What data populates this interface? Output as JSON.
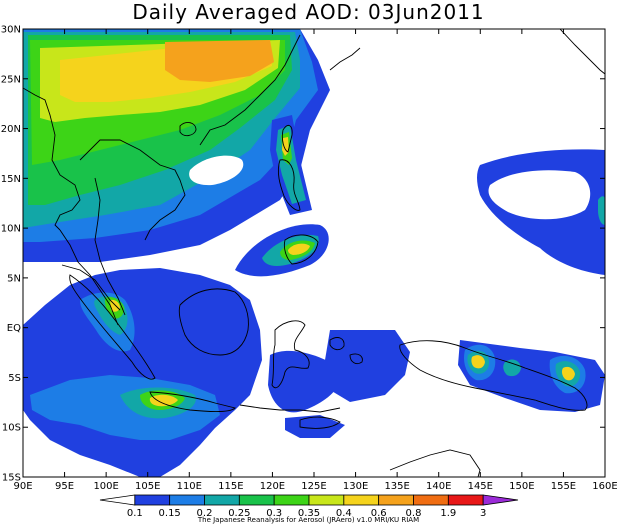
{
  "title": "Daily Averaged AOD: 03Jun2011",
  "credit": "The Japanese Reanalysis for Aerosol (JRAero) v1.0 MRI/KU RIAM",
  "map": {
    "lon_range": [
      90,
      160
    ],
    "lat_range": [
      -15,
      30
    ],
    "lon_ticks": [
      "90E",
      "95E",
      "100E",
      "105E",
      "110E",
      "115E",
      "120E",
      "125E",
      "130E",
      "135E",
      "140E",
      "145E",
      "150E",
      "155E",
      "160E"
    ],
    "lat_ticks": [
      "30N",
      "25N",
      "20N",
      "15N",
      "10N",
      "5N",
      "EQ",
      "5S",
      "10S",
      "15S"
    ]
  },
  "colorbar": {
    "labels": [
      "0.1",
      "0.15",
      "0.2",
      "0.25",
      "0.3",
      "0.35",
      "0.4",
      "0.6",
      "0.8",
      "1.9",
      "3"
    ],
    "colors": [
      "#ffffff",
      "#2040e0",
      "#1d7de6",
      "#12a7a7",
      "#19c24a",
      "#3dd417",
      "#c8e61a",
      "#f5d31c",
      "#f5a21c",
      "#f06d12",
      "#e81818",
      "#9b2bd8"
    ]
  },
  "palette": {
    "blue": "#2040e0",
    "light_blue": "#1d7de6",
    "teal": "#12a7a7",
    "green": "#19c24a",
    "lime": "#3dd417",
    "yellow_green": "#c8e61a",
    "yellow": "#f5d31c",
    "orange": "#f5a21c",
    "white": "#ffffff"
  }
}
